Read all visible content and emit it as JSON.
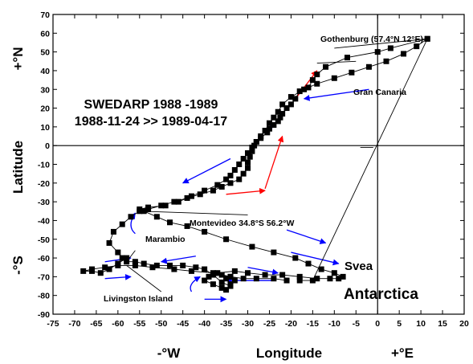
{
  "chart_data": {
    "type": "scatter",
    "title_lines": [
      "SWEDARP 1988 -1989",
      "1988-11-24 >> 1989-04-17"
    ],
    "xlabel": "Longitude",
    "ylabel": "Latitude",
    "x_hemisphere_labels": {
      "west": "-°W",
      "east": "+°E"
    },
    "y_hemisphere_labels": {
      "south": "-°S",
      "north": "+°N"
    },
    "xlim": [
      -75,
      20
    ],
    "ylim": [
      -90,
      70
    ],
    "x_ticks": [
      -75,
      -70,
      -65,
      -60,
      -55,
      -50,
      -45,
      -40,
      -35,
      -30,
      -25,
      -20,
      -15,
      -10,
      -5,
      0,
      5,
      10,
      15,
      20
    ],
    "y_ticks": [
      70,
      60,
      50,
      40,
      30,
      20,
      10,
      0,
      -10,
      -20,
      -30,
      -40,
      -50,
      -60,
      -70,
      -80,
      -90
    ],
    "grid": false,
    "reference_lines": {
      "x": 0,
      "y": 0
    },
    "marker": "square",
    "colors": {
      "marker": "#000000",
      "arrow_out": "#ff0000",
      "arrow_back": "#0000ff"
    },
    "series": [
      {
        "values": [
          [
            11.5,
            57
          ],
          [
            3,
            52
          ],
          [
            0,
            50
          ],
          [
            -7,
            47
          ],
          [
            -12,
            42
          ],
          [
            -14,
            38
          ],
          [
            -15,
            35
          ],
          [
            -16,
            31
          ],
          [
            -18,
            29
          ],
          [
            -19,
            25
          ],
          [
            -20,
            22
          ],
          [
            -21,
            20
          ],
          [
            -22,
            17
          ],
          [
            -22.5,
            15
          ],
          [
            -23,
            13
          ],
          [
            -24,
            11
          ],
          [
            -25,
            9
          ],
          [
            -25.5,
            7
          ],
          [
            -27,
            4
          ],
          [
            -28,
            2
          ],
          [
            -28.5,
            0
          ],
          [
            -29,
            -3
          ],
          [
            -29.5,
            -6
          ],
          [
            -30,
            -9
          ],
          [
            -30,
            -12
          ],
          [
            -31,
            -15
          ],
          [
            -32,
            -18
          ],
          [
            -34,
            -20
          ],
          [
            -36,
            -22
          ],
          [
            -38,
            -24
          ],
          [
            -41,
            -26
          ],
          [
            -44,
            -28
          ],
          [
            -47,
            -30
          ],
          [
            -50,
            -32
          ],
          [
            -53,
            -34
          ],
          [
            -55,
            -35
          ],
          [
            -57,
            -38
          ],
          [
            -59,
            -42
          ],
          [
            -61,
            -46
          ],
          [
            -62,
            -52
          ],
          [
            -60,
            -57
          ],
          [
            -59,
            -60
          ],
          [
            -58,
            -62
          ],
          [
            -56,
            -62
          ],
          [
            -54,
            -63
          ],
          [
            -51,
            -64
          ],
          [
            -48,
            -64
          ],
          [
            -45,
            -64
          ],
          [
            -42,
            -65
          ],
          [
            -40,
            -66
          ],
          [
            -38,
            -69
          ],
          [
            -36,
            -73
          ],
          [
            -34,
            -75
          ],
          [
            -33,
            -72
          ],
          [
            -34,
            -70
          ],
          [
            -36,
            -69
          ],
          [
            -39,
            -70
          ],
          [
            -40,
            -72
          ],
          [
            -38,
            -74
          ],
          [
            -36,
            -76
          ],
          [
            -35,
            -77
          ],
          [
            -34,
            -74
          ],
          [
            -35,
            -71
          ],
          [
            -37,
            -68
          ],
          [
            -33,
            -67
          ],
          [
            -30,
            -68
          ],
          [
            -26,
            -69
          ],
          [
            -22,
            -69
          ],
          [
            -18,
            -70
          ],
          [
            -14,
            -71
          ],
          [
            -11,
            -71
          ],
          [
            -9,
            -71
          ],
          [
            -8,
            -70
          ],
          [
            -10,
            -68
          ],
          [
            -13,
            -66
          ],
          [
            -16,
            -63
          ],
          [
            -19,
            -60
          ],
          [
            -24,
            -57
          ],
          [
            -29,
            -54
          ],
          [
            -35,
            -50
          ],
          [
            -40,
            -46
          ],
          [
            -44,
            -43
          ],
          [
            -48,
            -41
          ],
          [
            -51,
            -38
          ],
          [
            -54,
            -35
          ],
          [
            -55,
            -34
          ],
          [
            -53,
            -33
          ],
          [
            -49,
            -32
          ],
          [
            -46,
            -30
          ],
          [
            -43,
            -27
          ],
          [
            -40,
            -24
          ],
          [
            -37,
            -21
          ],
          [
            -35,
            -18
          ],
          [
            -34,
            -16
          ],
          [
            -33,
            -13
          ],
          [
            -32,
            -10
          ],
          [
            -31,
            -7
          ],
          [
            -30,
            -4
          ],
          [
            -29,
            -1
          ],
          [
            -28,
            2
          ],
          [
            -27,
            5
          ],
          [
            -26,
            8
          ],
          [
            -25,
            12
          ],
          [
            -24,
            15
          ],
          [
            -23,
            18
          ],
          [
            -22,
            22
          ],
          [
            -20,
            26
          ],
          [
            -17,
            30
          ],
          [
            -14,
            33
          ],
          [
            -10,
            36
          ],
          [
            -6,
            39
          ],
          [
            -2,
            42
          ],
          [
            2,
            45
          ],
          [
            6,
            49
          ],
          [
            9,
            53
          ],
          [
            11.5,
            57
          ],
          [
            -15,
            -72
          ],
          [
            -18,
            -72
          ],
          [
            -21,
            -72
          ],
          [
            -24,
            -71
          ],
          [
            -28,
            -71
          ],
          [
            -31,
            -71
          ],
          [
            -34,
            -70
          ],
          [
            -38,
            -68
          ],
          [
            -43,
            -67
          ],
          [
            -47,
            -66
          ],
          [
            -52,
            -65
          ],
          [
            -56,
            -64
          ],
          [
            -60,
            -64
          ],
          [
            -63,
            -65
          ],
          [
            -66,
            -66
          ],
          [
            -68,
            -67
          ],
          [
            -66,
            -67
          ],
          [
            -64,
            -68
          ],
          [
            -62,
            -66
          ],
          [
            -60,
            -63
          ],
          [
            -58,
            -60
          ]
        ]
      }
    ],
    "annotations": [
      "Gothenburg (57.4°N 12°E)",
      "Gran Canaria",
      "Montevideo  34.8°S 56.2°W",
      "Marambio",
      "Svea",
      "Antarctica",
      "Livingston Island"
    ]
  }
}
